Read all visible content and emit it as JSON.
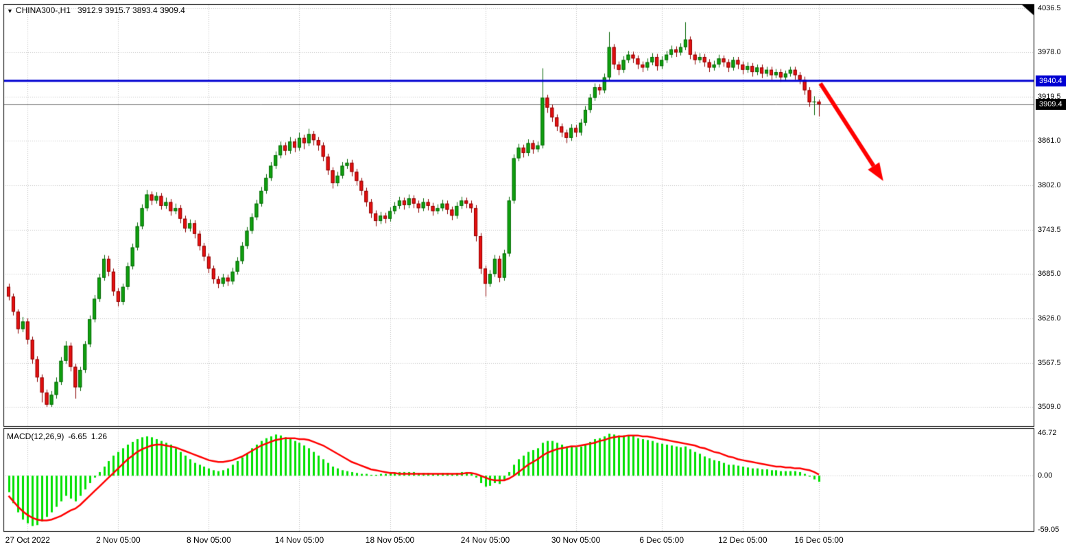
{
  "header": {
    "symbol": "CHINA300-,H1",
    "ohlc": "3912.9 3915.7 3893.4 3909.4"
  },
  "price_axis": {
    "labels": [
      "4036.5",
      "3978.0",
      "3919.5",
      "3861.0",
      "3802.0",
      "3743.5",
      "3685.0",
      "3626.0",
      "3567.5",
      "3509.0"
    ],
    "hline_badge": "3940.4",
    "current_price_badge": "3909.4"
  },
  "macd_header": {
    "name": "MACD(12,26,9)",
    "main_value": "-6.65",
    "signal_value": "1.26"
  },
  "colors": {
    "up": "#0fa30f",
    "up_border": "#066606",
    "down": "#e81010",
    "down_border": "#8a0000",
    "macd_hist": "#00e100",
    "signal_line": "#ff0000",
    "hline": "#0000d2",
    "grid": "#c2c2c2",
    "arrow": "#ff0000",
    "current_price_line": "#808080",
    "badge_hline_bg": "#0000d2",
    "badge_price_bg": "#000000"
  },
  "chart_data": {
    "type": "candlestick",
    "title": "CHINA300-,H1",
    "symbol": "CHINA300-",
    "timeframe": "H1",
    "last_ohlc": {
      "open": 3912.9,
      "high": 3915.7,
      "low": 3893.4,
      "close": 3909.4
    },
    "price_panel": {
      "ylim": [
        3483.6,
        4041.0
      ],
      "gridlines": [
        4036.5,
        3978.0,
        3919.5,
        3861.0,
        3802.0,
        3743.5,
        3685.0,
        3626.0,
        3567.5,
        3509.0
      ],
      "hline": 3940.4,
      "current_price": 3909.4
    },
    "time_ticks": [
      {
        "label": "27 Oct 2022",
        "i": 4
      },
      {
        "label": "2 Nov 05:00",
        "i": 23
      },
      {
        "label": "8 Nov 05:00",
        "i": 42
      },
      {
        "label": "14 Nov 05:00",
        "i": 61
      },
      {
        "label": "18 Nov 05:00",
        "i": 80
      },
      {
        "label": "24 Nov 05:00",
        "i": 100
      },
      {
        "label": "30 Nov 05:00",
        "i": 119
      },
      {
        "label": "6 Dec 05:00",
        "i": 137
      },
      {
        "label": "12 Dec 05:00",
        "i": 154
      },
      {
        "label": "16 Dec 05:00",
        "i": 170
      }
    ],
    "candles": [
      [
        3668,
        3672,
        3650,
        3655
      ],
      [
        3655,
        3659,
        3630,
        3635
      ],
      [
        3635,
        3638,
        3606,
        3612
      ],
      [
        3612,
        3628,
        3608,
        3622
      ],
      [
        3622,
        3626,
        3592,
        3598
      ],
      [
        3598,
        3602,
        3566,
        3572
      ],
      [
        3572,
        3576,
        3542,
        3548
      ],
      [
        3548,
        3552,
        3515,
        3528
      ],
      [
        3528,
        3532,
        3509,
        3512
      ],
      [
        3512,
        3530,
        3509,
        3525
      ],
      [
        3525,
        3548,
        3520,
        3542
      ],
      [
        3542,
        3575,
        3538,
        3570
      ],
      [
        3570,
        3596,
        3566,
        3590
      ],
      [
        3590,
        3594,
        3556,
        3562
      ],
      [
        3562,
        3566,
        3520,
        3535
      ],
      [
        3535,
        3562,
        3530,
        3558
      ],
      [
        3558,
        3596,
        3554,
        3592
      ],
      [
        3592,
        3630,
        3588,
        3625
      ],
      [
        3625,
        3657,
        3621,
        3652
      ],
      [
        3652,
        3685,
        3648,
        3680
      ],
      [
        3680,
        3710,
        3676,
        3705
      ],
      [
        3705,
        3709,
        3682,
        3688
      ],
      [
        3688,
        3692,
        3656,
        3662
      ],
      [
        3662,
        3666,
        3642,
        3648
      ],
      [
        3648,
        3672,
        3644,
        3668
      ],
      [
        3668,
        3700,
        3664,
        3695
      ],
      [
        3695,
        3725,
        3691,
        3720
      ],
      [
        3720,
        3753,
        3716,
        3748
      ],
      [
        3748,
        3777,
        3744,
        3772
      ],
      [
        3772,
        3796,
        3768,
        3790
      ],
      [
        3790,
        3794,
        3776,
        3782
      ],
      [
        3782,
        3793,
        3778,
        3788
      ],
      [
        3788,
        3792,
        3770,
        3775
      ],
      [
        3775,
        3786,
        3771,
        3780
      ],
      [
        3780,
        3784,
        3762,
        3768
      ],
      [
        3768,
        3778,
        3764,
        3772
      ],
      [
        3772,
        3776,
        3752,
        3758
      ],
      [
        3758,
        3762,
        3740,
        3745
      ],
      [
        3745,
        3757,
        3741,
        3752
      ],
      [
        3752,
        3756,
        3732,
        3738
      ],
      [
        3738,
        3742,
        3716,
        3722
      ],
      [
        3722,
        3726,
        3702,
        3708
      ],
      [
        3708,
        3712,
        3686,
        3692
      ],
      [
        3692,
        3696,
        3672,
        3678
      ],
      [
        3678,
        3682,
        3666,
        3672
      ],
      [
        3672,
        3685,
        3668,
        3680
      ],
      [
        3680,
        3684,
        3669,
        3675
      ],
      [
        3675,
        3693,
        3671,
        3688
      ],
      [
        3688,
        3707,
        3684,
        3702
      ],
      [
        3702,
        3727,
        3698,
        3722
      ],
      [
        3722,
        3747,
        3718,
        3742
      ],
      [
        3742,
        3765,
        3738,
        3760
      ],
      [
        3760,
        3783,
        3756,
        3778
      ],
      [
        3778,
        3800,
        3774,
        3795
      ],
      [
        3795,
        3817,
        3791,
        3812
      ],
      [
        3812,
        3833,
        3808,
        3828
      ],
      [
        3828,
        3847,
        3824,
        3842
      ],
      [
        3842,
        3860,
        3838,
        3855
      ],
      [
        3855,
        3859,
        3842,
        3848
      ],
      [
        3848,
        3866,
        3844,
        3860
      ],
      [
        3860,
        3864,
        3846,
        3852
      ],
      [
        3852,
        3872,
        3848,
        3865
      ],
      [
        3865,
        3869,
        3850,
        3858
      ],
      [
        3858,
        3877,
        3854,
        3870
      ],
      [
        3870,
        3874,
        3855,
        3862
      ],
      [
        3862,
        3866,
        3848,
        3855
      ],
      [
        3855,
        3859,
        3834,
        3840
      ],
      [
        3840,
        3844,
        3816,
        3822
      ],
      [
        3822,
        3826,
        3798,
        3805
      ],
      [
        3805,
        3820,
        3801,
        3815
      ],
      [
        3815,
        3833,
        3811,
        3828
      ],
      [
        3828,
        3837,
        3824,
        3832
      ],
      [
        3832,
        3836,
        3814,
        3820
      ],
      [
        3820,
        3824,
        3802,
        3808
      ],
      [
        3808,
        3812,
        3789,
        3795
      ],
      [
        3795,
        3799,
        3774,
        3780
      ],
      [
        3780,
        3784,
        3759,
        3765
      ],
      [
        3765,
        3769,
        3748,
        3755
      ],
      [
        3755,
        3767,
        3751,
        3762
      ],
      [
        3762,
        3766,
        3752,
        3758
      ],
      [
        3758,
        3773,
        3754,
        3768
      ],
      [
        3768,
        3780,
        3764,
        3775
      ],
      [
        3775,
        3787,
        3771,
        3782
      ],
      [
        3782,
        3786,
        3770,
        3776
      ],
      [
        3776,
        3790,
        3772,
        3785
      ],
      [
        3785,
        3789,
        3772,
        3778
      ],
      [
        3778,
        3782,
        3766,
        3772
      ],
      [
        3772,
        3785,
        3768,
        3780
      ],
      [
        3780,
        3784,
        3769,
        3775
      ],
      [
        3775,
        3779,
        3762,
        3768
      ],
      [
        3768,
        3777,
        3764,
        3772
      ],
      [
        3772,
        3783,
        3768,
        3778
      ],
      [
        3778,
        3782,
        3764,
        3770
      ],
      [
        3770,
        3774,
        3756,
        3762
      ],
      [
        3762,
        3780,
        3758,
        3775
      ],
      [
        3775,
        3787,
        3771,
        3782
      ],
      [
        3782,
        3786,
        3772,
        3778
      ],
      [
        3778,
        3782,
        3766,
        3772
      ],
      [
        3772,
        3776,
        3728,
        3735
      ],
      [
        3735,
        3739,
        3685,
        3692
      ],
      [
        3692,
        3696,
        3655,
        3672
      ],
      [
        3672,
        3690,
        3668,
        3685
      ],
      [
        3685,
        3710,
        3681,
        3705
      ],
      [
        3705,
        3709,
        3674,
        3680
      ],
      [
        3680,
        3717,
        3676,
        3712
      ],
      [
        3712,
        3787,
        3708,
        3782
      ],
      [
        3782,
        3843,
        3778,
        3838
      ],
      [
        3838,
        3857,
        3834,
        3852
      ],
      [
        3852,
        3856,
        3839,
        3845
      ],
      [
        3845,
        3863,
        3841,
        3858
      ],
      [
        3858,
        3862,
        3844,
        3850
      ],
      [
        3850,
        3860,
        3846,
        3855
      ],
      [
        3855,
        3957,
        3851,
        3918
      ],
      [
        3918,
        3922,
        3898,
        3905
      ],
      [
        3905,
        3909,
        3886,
        3892
      ],
      [
        3892,
        3896,
        3874,
        3880
      ],
      [
        3880,
        3884,
        3866,
        3872
      ],
      [
        3872,
        3876,
        3858,
        3865
      ],
      [
        3865,
        3883,
        3861,
        3878
      ],
      [
        3878,
        3882,
        3866,
        3872
      ],
      [
        3872,
        3890,
        3868,
        3885
      ],
      [
        3885,
        3907,
        3881,
        3902
      ],
      [
        3902,
        3923,
        3898,
        3918
      ],
      [
        3918,
        3937,
        3914,
        3932
      ],
      [
        3932,
        3936,
        3922,
        3928
      ],
      [
        3928,
        3950,
        3924,
        3945
      ],
      [
        3945,
        4005,
        3941,
        3985
      ],
      [
        3985,
        3989,
        3956,
        3962
      ],
      [
        3962,
        3966,
        3948,
        3955
      ],
      [
        3955,
        3973,
        3951,
        3968
      ],
      [
        3968,
        3980,
        3964,
        3975
      ],
      [
        3975,
        3979,
        3964,
        3970
      ],
      [
        3970,
        3974,
        3956,
        3962
      ],
      [
        3962,
        3966,
        3952,
        3958
      ],
      [
        3958,
        3970,
        3954,
        3965
      ],
      [
        3965,
        3977,
        3961,
        3972
      ],
      [
        3972,
        3976,
        3954,
        3960
      ],
      [
        3960,
        3973,
        3956,
        3968
      ],
      [
        3968,
        3980,
        3964,
        3975
      ],
      [
        3975,
        3987,
        3971,
        3982
      ],
      [
        3982,
        3986,
        3972,
        3978
      ],
      [
        3978,
        3990,
        3974,
        3985
      ],
      [
        3985,
        4018,
        3981,
        3995
      ],
      [
        3995,
        3999,
        3969,
        3975
      ],
      [
        3975,
        3979,
        3962,
        3968
      ],
      [
        3968,
        3977,
        3964,
        3972
      ],
      [
        3972,
        3976,
        3959,
        3965
      ],
      [
        3965,
        3969,
        3952,
        3958
      ],
      [
        3958,
        3967,
        3954,
        3962
      ],
      [
        3962,
        3975,
        3958,
        3970
      ],
      [
        3970,
        3974,
        3959,
        3965
      ],
      [
        3965,
        3969,
        3952,
        3958
      ],
      [
        3958,
        3972,
        3954,
        3968
      ],
      [
        3968,
        3972,
        3956,
        3962
      ],
      [
        3962,
        3966,
        3949,
        3955
      ],
      [
        3955,
        3965,
        3951,
        3960
      ],
      [
        3960,
        3964,
        3946,
        3952
      ],
      [
        3952,
        3962,
        3948,
        3958
      ],
      [
        3958,
        3962,
        3944,
        3950
      ],
      [
        3950,
        3959,
        3946,
        3955
      ],
      [
        3955,
        3959,
        3942,
        3948
      ],
      [
        3948,
        3956,
        3944,
        3952
      ],
      [
        3952,
        3956,
        3939,
        3945
      ],
      [
        3945,
        3954,
        3941,
        3950
      ],
      [
        3950,
        3959,
        3946,
        3955
      ],
      [
        3955,
        3959,
        3942,
        3948
      ],
      [
        3948,
        3952,
        3936,
        3942
      ],
      [
        3942,
        3946,
        3922,
        3928
      ],
      [
        3928,
        3932,
        3906,
        3912
      ],
      [
        3912,
        3920,
        3895,
        3913
      ],
      [
        3912.9,
        3915.7,
        3893.4,
        3909.4
      ]
    ],
    "macd_panel": {
      "label": "MACD(12,26,9)",
      "current_main": -6.65,
      "current_signal": 1.26,
      "ylim": [
        -59.05,
        46.72
      ],
      "ticks": [
        {
          "text": "46.72",
          "value": 46.72
        },
        {
          "text": "0.00",
          "value": 0
        },
        {
          "text": "-59.05",
          "value": -59.05
        }
      ],
      "histogram": [
        -18,
        -30,
        -40,
        -48,
        -52,
        -55,
        -54,
        -50,
        -45,
        -40,
        -34,
        -28,
        -22,
        -25,
        -28,
        -22,
        -15,
        -8,
        -2,
        4,
        10,
        16,
        22,
        26,
        30,
        34,
        37,
        40,
        42,
        43,
        42,
        40,
        38,
        36,
        34,
        30,
        26,
        22,
        18,
        14,
        12,
        10,
        8,
        6,
        5,
        6,
        8,
        12,
        16,
        20,
        25,
        30,
        34,
        38,
        41,
        43,
        45,
        44,
        42,
        40,
        38,
        36,
        33,
        30,
        26,
        22,
        18,
        14,
        10,
        8,
        6,
        5,
        4,
        3,
        2,
        2,
        1,
        1,
        2,
        2,
        3,
        3,
        4,
        4,
        4,
        4,
        3,
        3,
        3,
        2,
        2,
        3,
        3,
        2,
        3,
        4,
        4,
        3,
        -2,
        -8,
        -12,
        -11,
        -8,
        -9,
        -5,
        4,
        12,
        18,
        22,
        26,
        28,
        30,
        36,
        38,
        38,
        36,
        34,
        32,
        32,
        31,
        32,
        34,
        37,
        40,
        41,
        43,
        46,
        45,
        44,
        44,
        44,
        43,
        41,
        40,
        39,
        38,
        36,
        35,
        34,
        33,
        32,
        31,
        32,
        29,
        26,
        24,
        21,
        19,
        17,
        16,
        14,
        12,
        12,
        11,
        10,
        9,
        8,
        8,
        7,
        7,
        6,
        6,
        5,
        5,
        5,
        5,
        4,
        2,
        -1,
        -4,
        -6.65
      ],
      "signal": [
        -22,
        -28,
        -34,
        -39,
        -43,
        -46,
        -48,
        -49,
        -49,
        -48,
        -46,
        -44,
        -41,
        -38,
        -36,
        -32,
        -27,
        -22,
        -17,
        -12,
        -7,
        -2,
        3,
        8,
        13,
        18,
        22,
        26,
        29,
        31,
        33,
        34,
        34,
        33,
        32,
        31,
        29,
        27,
        25,
        23,
        21,
        19,
        17,
        16,
        15,
        15,
        16,
        17,
        19,
        21,
        24,
        27,
        30,
        33,
        35,
        37,
        39,
        40,
        41,
        41,
        41,
        40,
        40,
        39,
        37,
        35,
        33,
        30,
        27,
        24,
        21,
        18,
        15,
        13,
        11,
        9,
        7,
        6,
        5,
        4,
        3,
        3,
        2,
        2,
        2,
        2,
        2,
        2,
        2,
        2,
        2,
        2,
        2,
        2,
        2,
        2,
        3,
        3,
        2,
        0,
        -2,
        -4,
        -5,
        -5,
        -5,
        -3,
        0,
        4,
        8,
        12,
        15,
        18,
        22,
        25,
        27,
        29,
        30,
        31,
        32,
        32,
        33,
        34,
        35,
        36,
        38,
        39,
        41,
        42,
        43,
        43,
        44,
        44,
        44,
        43,
        43,
        42,
        41,
        40,
        39,
        38,
        37,
        36,
        35,
        34,
        33,
        31,
        30,
        28,
        26,
        25,
        23,
        21,
        20,
        18,
        17,
        16,
        15,
        14,
        13,
        12,
        11,
        10,
        10,
        9,
        9,
        8,
        8,
        7,
        6,
        4,
        1.26
      ]
    },
    "annotations": {
      "arrow": {
        "from": {
          "i": 170.3,
          "price": 3937
        },
        "to": {
          "i": 183.5,
          "price": 3808
        }
      }
    }
  }
}
